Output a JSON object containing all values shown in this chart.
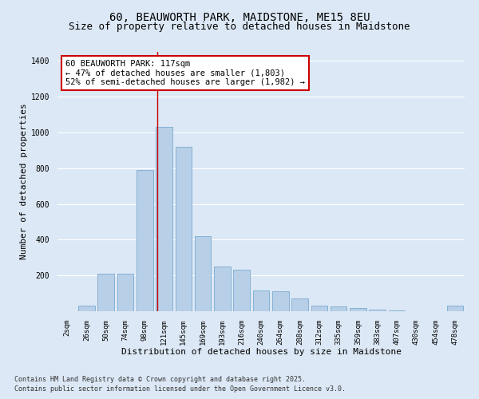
{
  "title1": "60, BEAUWORTH PARK, MAIDSTONE, ME15 8EU",
  "title2": "Size of property relative to detached houses in Maidstone",
  "xlabel": "Distribution of detached houses by size in Maidstone",
  "ylabel": "Number of detached properties",
  "categories": [
    "2sqm",
    "26sqm",
    "50sqm",
    "74sqm",
    "98sqm",
    "121sqm",
    "145sqm",
    "169sqm",
    "193sqm",
    "216sqm",
    "240sqm",
    "264sqm",
    "288sqm",
    "312sqm",
    "335sqm",
    "359sqm",
    "383sqm",
    "407sqm",
    "430sqm",
    "454sqm",
    "478sqm"
  ],
  "values": [
    0,
    30,
    210,
    210,
    790,
    1030,
    920,
    420,
    250,
    230,
    115,
    110,
    70,
    30,
    25,
    20,
    10,
    5,
    0,
    0,
    30
  ],
  "bar_color": "#b8cfe8",
  "bar_edge_color": "#7aaad0",
  "background_color": "#dce8f5",
  "grid_color": "#ffffff",
  "red_line_index": 4.65,
  "annotation_text": "60 BEAUWORTH PARK: 117sqm\n← 47% of detached houses are smaller (1,803)\n52% of semi-detached houses are larger (1,982) →",
  "annotation_box_color": "#ffffff",
  "annotation_box_edge": "#cc0000",
  "red_line_color": "#cc0000",
  "footer1": "Contains HM Land Registry data © Crown copyright and database right 2025.",
  "footer2": "Contains public sector information licensed under the Open Government Licence v3.0.",
  "ylim": [
    0,
    1450
  ],
  "title_fontsize": 10,
  "subtitle_fontsize": 9,
  "xlabel_fontsize": 8,
  "ylabel_fontsize": 8,
  "tick_fontsize": 6.5,
  "annotation_fontsize": 7.5,
  "footer_fontsize": 6
}
